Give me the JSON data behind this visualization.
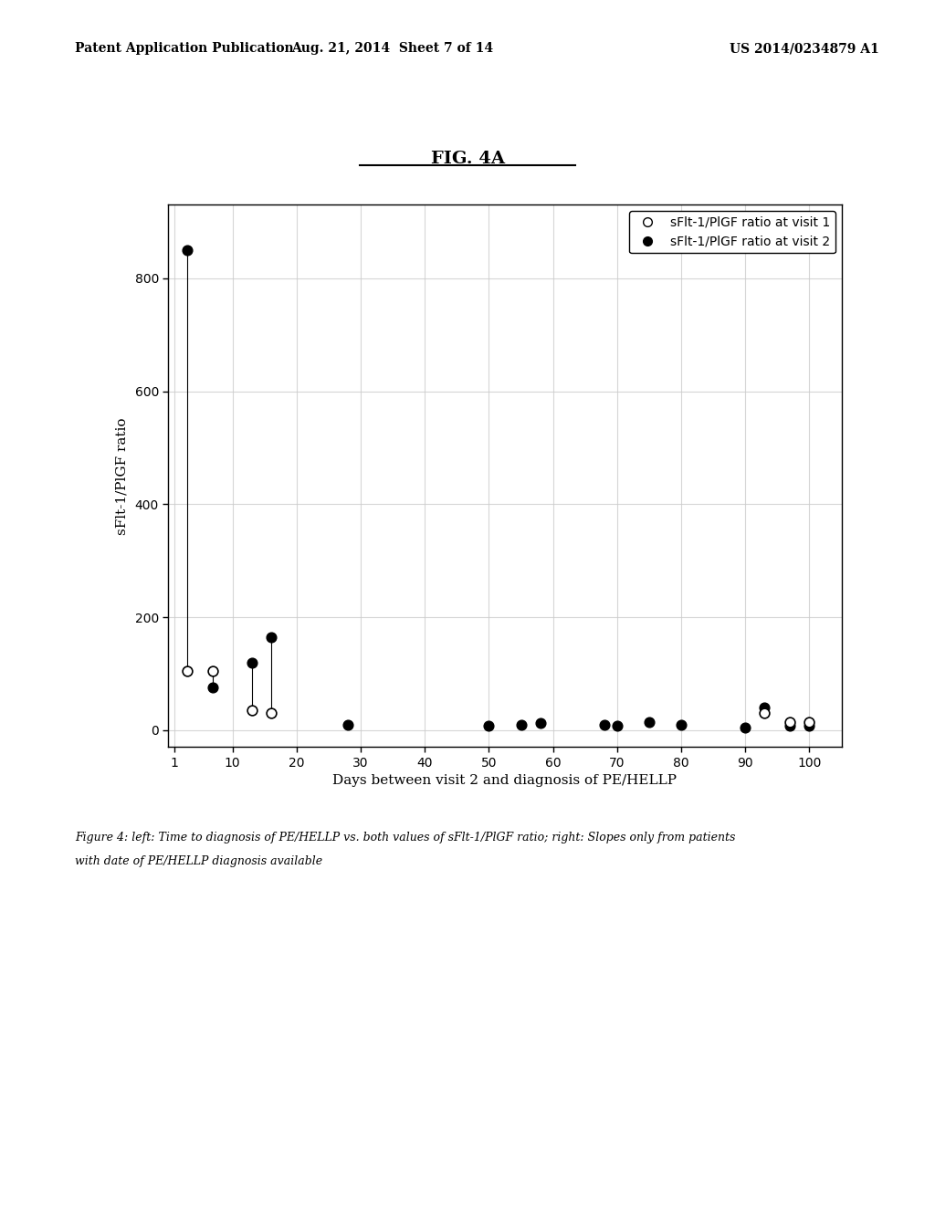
{
  "title": "FIG. 4A",
  "xlabel": "Days between visit 2 and diagnosis of PE/HELLP",
  "ylabel": "sFlt-1/PlGF ratio",
  "header_left": "Patent Application Publication",
  "header_mid": "Aug. 21, 2014  Sheet 7 of 14",
  "header_right": "US 2014/0234879 A1",
  "caption_line1": "Figure 4: left: Time to diagnosis of PE/HELLP vs. both values of sFlt-1/PlGF ratio; right: Slopes only from patients",
  "caption_line2": "with date of PE/HELLP diagnosis available",
  "legend_visit1": "sFlt-1/PlGF ratio at visit 1",
  "legend_visit2": "sFlt-1/PlGF ratio at visit 2",
  "xlim": [
    0,
    105
  ],
  "ylim": [
    -30,
    930
  ],
  "xticks": [
    1,
    10,
    20,
    30,
    40,
    50,
    60,
    70,
    80,
    90,
    100
  ],
  "yticks": [
    0,
    200,
    400,
    600,
    800
  ],
  "pairs": [
    {
      "x": 3,
      "v1": 105,
      "v2": 850
    },
    {
      "x": 7,
      "v1": 105,
      "v2": 75
    },
    {
      "x": 13,
      "v1": 35,
      "v2": 120
    },
    {
      "x": 16,
      "v1": 30,
      "v2": 165
    },
    {
      "x": 28,
      "v1": null,
      "v2": 10
    },
    {
      "x": 50,
      "v1": null,
      "v2": 8
    },
    {
      "x": 55,
      "v1": null,
      "v2": 10
    },
    {
      "x": 58,
      "v1": null,
      "v2": 12
    },
    {
      "x": 68,
      "v1": null,
      "v2": 10
    },
    {
      "x": 70,
      "v1": null,
      "v2": 8
    },
    {
      "x": 75,
      "v1": null,
      "v2": 15
    },
    {
      "x": 80,
      "v1": null,
      "v2": 10
    },
    {
      "x": 90,
      "v1": null,
      "v2": 5
    },
    {
      "x": 93,
      "v1": 30,
      "v2": 40
    },
    {
      "x": 97,
      "v1": 15,
      "v2": 8
    },
    {
      "x": 100,
      "v1": 15,
      "v2": 8
    }
  ],
  "background_color": "#ffffff",
  "plot_bg_color": "#ffffff",
  "grid_color": "#cccccc",
  "text_color": "#000000"
}
